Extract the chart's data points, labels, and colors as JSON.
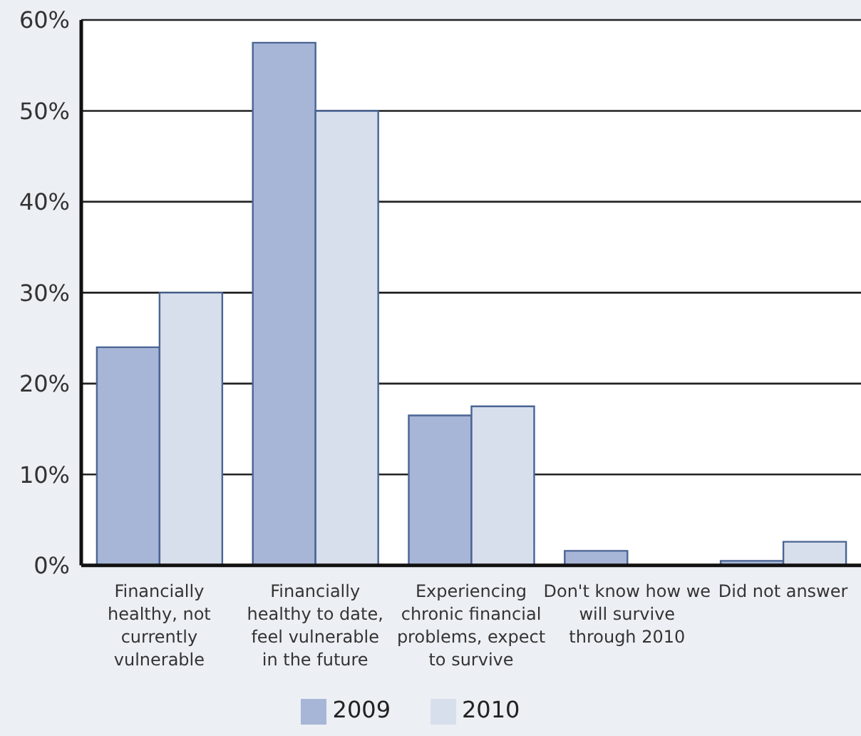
{
  "chart_data": {
    "type": "bar",
    "categories": [
      "Financially healthy, not currently vulnerable",
      "Financially healthy to date, feel vulnerable in the future",
      "Experiencing chronic financial problems, expect to survive",
      "Don't know how we will survive through 2010",
      "Did not answer"
    ],
    "series": [
      {
        "name": "2009",
        "color": "#a7b6d6",
        "values": [
          24,
          57.5,
          16.5,
          1.6,
          0.5
        ]
      },
      {
        "name": "2010",
        "color": "#d8dfec",
        "values": [
          30,
          50,
          17.5,
          null,
          2.6
        ]
      }
    ],
    "ylim": [
      0,
      60
    ],
    "yticks": [
      {
        "value": 0,
        "label": "0%"
      },
      {
        "value": 10,
        "label": "10%"
      },
      {
        "value": 20,
        "label": "20%"
      },
      {
        "value": 30,
        "label": "30%"
      },
      {
        "value": 40,
        "label": "40%"
      },
      {
        "value": 50,
        "label": "50%"
      },
      {
        "value": 60,
        "label": "60%"
      }
    ],
    "grid": "y",
    "legend": "bottom"
  }
}
